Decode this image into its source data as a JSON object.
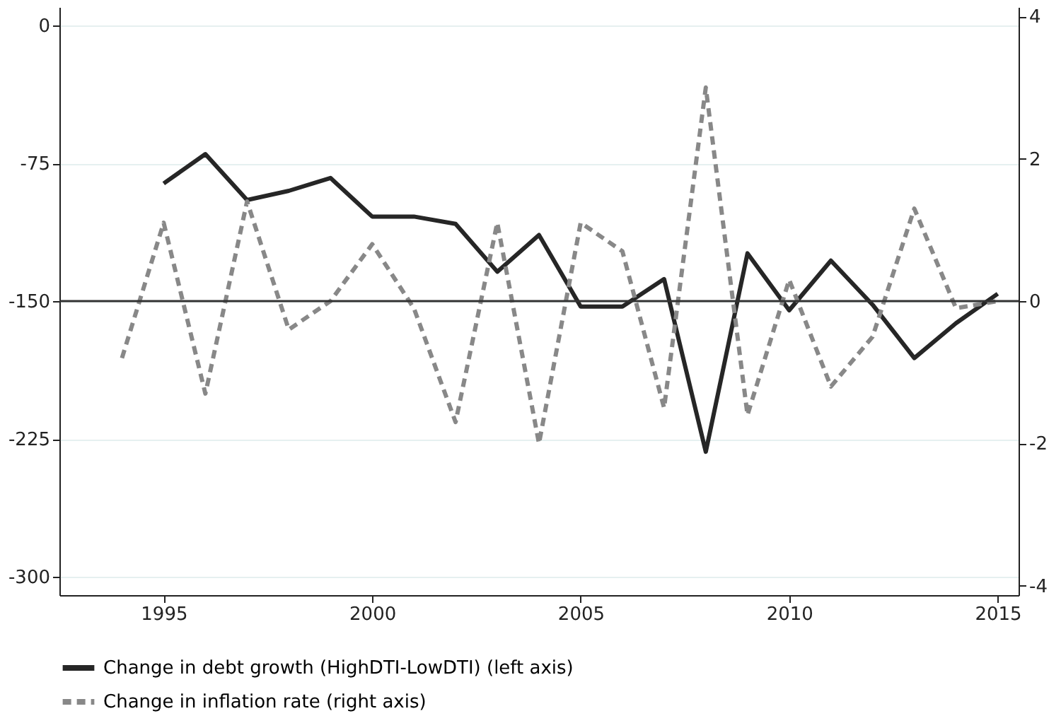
{
  "chart_data": {
    "type": "line",
    "x": [
      1994,
      1995,
      1996,
      1997,
      1998,
      1999,
      2000,
      2001,
      2002,
      2003,
      2004,
      2005,
      2006,
      2007,
      2008,
      2009,
      2010,
      2011,
      2012,
      2013,
      2014,
      2015
    ],
    "series": [
      {
        "name": "Change in debt growth (HighDTI-LowDTI) (left axis)",
        "color": "#262626",
        "line_style": "solid",
        "values": [
          null,
          -86,
          -70,
          -95,
          -90,
          -83,
          -104,
          -104,
          -108,
          -134,
          -114,
          -153,
          -153,
          -138,
          -232,
          -124,
          -155,
          -128,
          -152,
          -181,
          -162,
          -146
        ]
      },
      {
        "name": "Change in inflation rate (right axis)",
        "color": "#888888",
        "line_style": "dashed",
        "axis": "y2",
        "values": [
          -0.8,
          1.1,
          -1.3,
          1.4,
          -0.4,
          0.0,
          0.8,
          -0.1,
          -1.7,
          1.1,
          -2.0,
          1.1,
          0.7,
          -1.5,
          3.0,
          -1.6,
          0.3,
          -1.2,
          -0.5,
          1.3,
          -0.1,
          0.0
        ]
      }
    ],
    "xlim": [
      1992.5,
      2015.5
    ],
    "xticks": [
      1995,
      2000,
      2005,
      2010,
      2015
    ],
    "ylim": [
      -310,
      10
    ],
    "yticks": [
      0,
      -75,
      -150,
      -225,
      -300
    ],
    "y2lim": [
      -4.13,
      4.13
    ],
    "y2ticks": [
      4,
      2,
      0,
      -2,
      -4
    ],
    "ref_lines": [
      {
        "axis": "y2",
        "value": 0,
        "color": "#333333"
      }
    ],
    "grid": "y",
    "legend": "bottom"
  }
}
